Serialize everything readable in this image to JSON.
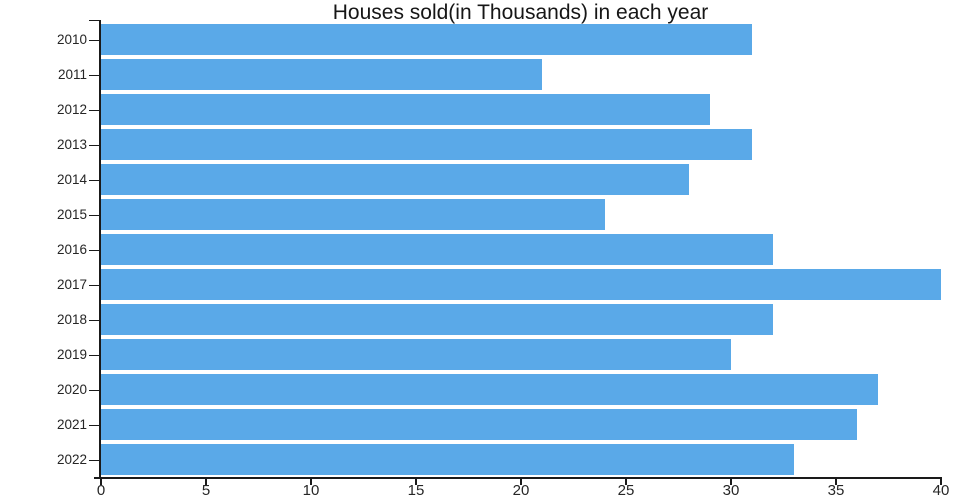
{
  "chart_data": {
    "type": "bar",
    "orientation": "horizontal",
    "title": "Houses sold(in Thousands) in each year",
    "categories": [
      "2010",
      "2011",
      "2012",
      "2013",
      "2014",
      "2015",
      "2016",
      "2017",
      "2018",
      "2019",
      "2020",
      "2021",
      "2022"
    ],
    "values": [
      31,
      21,
      29,
      31,
      28,
      24,
      32,
      40,
      32,
      30,
      37,
      36,
      33
    ],
    "xlabel": "",
    "ylabel": "",
    "xlim": [
      0,
      40
    ],
    "xticks": [
      0,
      5,
      10,
      15,
      20,
      25,
      30,
      35,
      40
    ],
    "grid": false,
    "legend": "none",
    "colors": {
      "bar": "#5AA9E8",
      "axis": "#1a1a1a",
      "tick_label": "#262626",
      "title": "#161616",
      "background": "#ffffff"
    }
  }
}
